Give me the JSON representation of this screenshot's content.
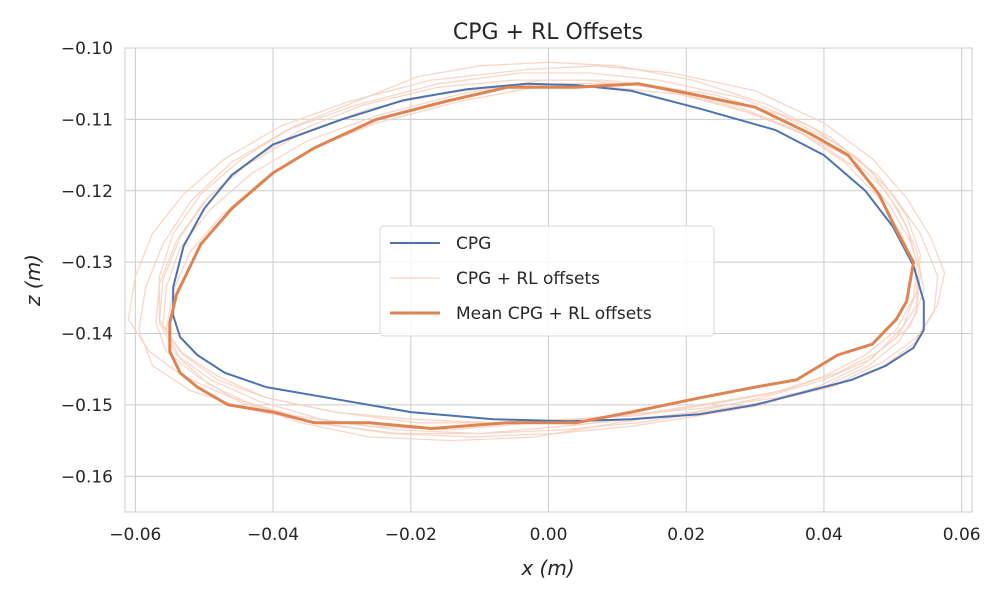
{
  "chart_data": {
    "type": "line",
    "title": "CPG + RL Offsets",
    "xlabel": "x (m)",
    "ylabel": "z (m)",
    "xlim": [
      -0.0615,
      0.0615
    ],
    "ylim": [
      -0.165,
      -0.1
    ],
    "x_ticks": [
      -0.06,
      -0.04,
      -0.02,
      0.0,
      0.02,
      0.04,
      0.06
    ],
    "y_ticks": [
      -0.1,
      -0.11,
      -0.12,
      -0.13,
      -0.14,
      -0.15,
      -0.16
    ],
    "x_tick_labels": [
      "−0.06",
      "−0.04",
      "−0.02",
      "0.00",
      "0.02",
      "0.04",
      "0.06"
    ],
    "y_tick_labels": [
      "−0.10",
      "−0.11",
      "−0.12",
      "−0.13",
      "−0.14",
      "−0.15",
      "−0.16"
    ],
    "grid": true,
    "legend_position": "center",
    "series": [
      {
        "name": "CPG",
        "color": "#4c72b0",
        "x": [
          -0.003,
          0.004,
          0.012,
          0.022,
          0.033,
          0.04,
          0.046,
          0.05,
          0.053,
          0.0545,
          0.0545,
          0.053,
          0.049,
          0.044,
          0.038,
          0.03,
          0.022,
          0.012,
          0.003,
          -0.008,
          -0.02,
          -0.032,
          -0.041,
          -0.047,
          -0.051,
          -0.0535,
          -0.0545,
          -0.0545,
          -0.053,
          -0.05,
          -0.046,
          -0.04,
          -0.03,
          -0.021,
          -0.012,
          -0.003
        ],
        "z": [
          -0.105,
          -0.1052,
          -0.106,
          -0.1085,
          -0.1115,
          -0.115,
          -0.12,
          -0.125,
          -0.1305,
          -0.1355,
          -0.1395,
          -0.142,
          -0.1445,
          -0.1465,
          -0.148,
          -0.15,
          -0.1513,
          -0.152,
          -0.1523,
          -0.152,
          -0.151,
          -0.149,
          -0.1475,
          -0.1455,
          -0.143,
          -0.1405,
          -0.1375,
          -0.1335,
          -0.1278,
          -0.1225,
          -0.1178,
          -0.1135,
          -0.11,
          -0.1073,
          -0.1058,
          -0.105
        ]
      },
      {
        "name": "CPG + RL offsets",
        "color": "#f6d3c2",
        "x": [
          -0.004,
          0.006,
          0.016,
          0.028,
          0.038,
          0.045,
          0.05,
          0.054,
          0.0565,
          0.056,
          0.053,
          0.048,
          0.041,
          0.032,
          0.022,
          0.012,
          0.002,
          -0.01,
          -0.022,
          -0.034,
          -0.044,
          -0.052,
          -0.0575,
          -0.0595,
          -0.0585,
          -0.056,
          -0.052,
          -0.046,
          -0.038,
          -0.028,
          -0.016,
          -0.004
        ],
        "z": [
          -0.1035,
          -0.1035,
          -0.1045,
          -0.107,
          -0.111,
          -0.1155,
          -0.1205,
          -0.126,
          -0.132,
          -0.137,
          -0.1415,
          -0.145,
          -0.1475,
          -0.1495,
          -0.151,
          -0.152,
          -0.153,
          -0.154,
          -0.154,
          -0.1525,
          -0.1505,
          -0.148,
          -0.1445,
          -0.1395,
          -0.1335,
          -0.1275,
          -0.1215,
          -0.116,
          -0.1115,
          -0.108,
          -0.105,
          -0.1035
        ]
      },
      {
        "name": "Mean CPG + RL offsets",
        "color": "#dd8452",
        "x": [
          -0.006,
          0.004,
          0.013,
          0.021,
          0.03,
          0.038,
          0.0435,
          0.048,
          0.0505,
          0.053,
          0.052,
          0.0505,
          0.047,
          0.042,
          0.036,
          0.03,
          0.022,
          0.012,
          0.004,
          -0.006,
          -0.017,
          -0.026,
          -0.034,
          -0.04,
          -0.0465,
          -0.051,
          -0.0535,
          -0.055,
          -0.055,
          -0.054,
          -0.0525,
          -0.0505,
          -0.046,
          -0.04,
          -0.034,
          -0.025,
          -0.015,
          -0.006
        ],
        "z": [
          -0.1055,
          -0.1055,
          -0.105,
          -0.1065,
          -0.1083,
          -0.112,
          -0.115,
          -0.1205,
          -0.1255,
          -0.13,
          -0.1355,
          -0.138,
          -0.1415,
          -0.143,
          -0.1465,
          -0.1475,
          -0.149,
          -0.151,
          -0.1525,
          -0.1525,
          -0.1533,
          -0.1525,
          -0.1525,
          -0.151,
          -0.15,
          -0.1475,
          -0.1455,
          -0.1425,
          -0.1385,
          -0.1345,
          -0.1315,
          -0.1275,
          -0.1225,
          -0.1175,
          -0.114,
          -0.11,
          -0.1075,
          -0.1055
        ]
      }
    ],
    "extra_traces": {
      "color": "#f6d3c2",
      "traces": [
        {
          "x": [
            -0.003,
            0.007,
            0.018,
            0.03,
            0.04,
            0.047,
            0.052,
            0.0555,
            0.0575,
            0.0565,
            0.0535,
            0.0485,
            0.042,
            0.033,
            0.022,
            0.01,
            -0.002,
            -0.014,
            -0.026,
            -0.037,
            -0.046,
            -0.053,
            -0.058,
            -0.061,
            -0.06,
            -0.0575,
            -0.053,
            -0.047,
            -0.039,
            -0.029,
            -0.017,
            -0.003
          ],
          "z": [
            -0.103,
            -0.1025,
            -0.1035,
            -0.106,
            -0.1105,
            -0.1155,
            -0.121,
            -0.1265,
            -0.1315,
            -0.136,
            -0.1405,
            -0.144,
            -0.147,
            -0.149,
            -0.1505,
            -0.1515,
            -0.1525,
            -0.1535,
            -0.153,
            -0.1515,
            -0.149,
            -0.146,
            -0.1425,
            -0.138,
            -0.132,
            -0.126,
            -0.1205,
            -0.1155,
            -0.111,
            -0.1075,
            -0.1045,
            -0.103
          ]
        },
        {
          "x": [
            -0.008,
            0.002,
            0.012,
            0.024,
            0.034,
            0.042,
            0.048,
            0.052,
            0.054,
            0.0535,
            0.0515,
            0.047,
            0.04,
            0.031,
            0.021,
            0.01,
            -0.002,
            -0.014,
            -0.026,
            -0.036,
            -0.045,
            -0.051,
            -0.0555,
            -0.057,
            -0.0565,
            -0.054,
            -0.05,
            -0.044,
            -0.036,
            -0.026,
            -0.016,
            -0.008
          ],
          "z": [
            -0.1055,
            -0.105,
            -0.105,
            -0.1065,
            -0.1095,
            -0.1135,
            -0.118,
            -0.1235,
            -0.129,
            -0.134,
            -0.139,
            -0.1435,
            -0.1465,
            -0.149,
            -0.151,
            -0.1525,
            -0.1545,
            -0.155,
            -0.1545,
            -0.1525,
            -0.1495,
            -0.146,
            -0.1425,
            -0.1385,
            -0.133,
            -0.127,
            -0.1215,
            -0.1165,
            -0.112,
            -0.1085,
            -0.1065,
            -0.1055
          ]
        },
        {
          "x": [
            -0.001,
            0.008,
            0.017,
            0.027,
            0.036,
            0.044,
            0.049,
            0.052,
            0.0535,
            0.053,
            0.0505,
            0.046,
            0.04,
            0.032,
            0.023,
            0.013,
            0.003,
            -0.008,
            -0.02,
            -0.031,
            -0.041,
            -0.048,
            -0.053,
            -0.056,
            -0.0555,
            -0.0535,
            -0.049,
            -0.043,
            -0.035,
            -0.025,
            -0.013,
            -0.001
          ],
          "z": [
            -0.1045,
            -0.1045,
            -0.1055,
            -0.108,
            -0.1115,
            -0.1155,
            -0.12,
            -0.125,
            -0.13,
            -0.135,
            -0.1395,
            -0.143,
            -0.146,
            -0.1485,
            -0.15,
            -0.1515,
            -0.152,
            -0.1525,
            -0.152,
            -0.151,
            -0.149,
            -0.1465,
            -0.143,
            -0.139,
            -0.1335,
            -0.128,
            -0.1225,
            -0.1175,
            -0.113,
            -0.1095,
            -0.1065,
            -0.1045
          ]
        },
        {
          "x": [
            -0.005,
            0.005,
            0.015,
            0.026,
            0.036,
            0.043,
            0.048,
            0.0515,
            0.0535,
            0.0535,
            0.051,
            0.0465,
            0.04,
            0.032,
            0.023,
            0.013,
            0.002,
            -0.01,
            -0.022,
            -0.033,
            -0.042,
            -0.049,
            -0.054,
            -0.0565,
            -0.056,
            -0.0535,
            -0.0495,
            -0.0435,
            -0.036,
            -0.027,
            -0.016,
            -0.005
          ],
          "z": [
            -0.1045,
            -0.1045,
            -0.1055,
            -0.108,
            -0.1115,
            -0.116,
            -0.121,
            -0.1265,
            -0.132,
            -0.137,
            -0.141,
            -0.1445,
            -0.1475,
            -0.1495,
            -0.151,
            -0.1525,
            -0.1535,
            -0.154,
            -0.1535,
            -0.152,
            -0.1495,
            -0.1465,
            -0.143,
            -0.1385,
            -0.1325,
            -0.1265,
            -0.121,
            -0.116,
            -0.1115,
            -0.108,
            -0.1055,
            -0.1045
          ]
        },
        {
          "x": [
            -0.01,
            0.0,
            0.01,
            0.021,
            0.032,
            0.041,
            0.047,
            0.051,
            0.0535,
            0.0545,
            0.0525,
            0.048,
            0.042,
            0.034,
            0.025,
            0.015,
            0.004,
            -0.007,
            -0.019,
            -0.031,
            -0.041,
            -0.048,
            -0.0535,
            -0.0565,
            -0.0565,
            -0.0545,
            -0.0505,
            -0.0445,
            -0.037,
            -0.028,
            -0.019,
            -0.01
          ],
          "z": [
            -0.1025,
            -0.102,
            -0.1025,
            -0.1045,
            -0.108,
            -0.1125,
            -0.1175,
            -0.123,
            -0.1285,
            -0.134,
            -0.139,
            -0.1425,
            -0.1455,
            -0.148,
            -0.1495,
            -0.151,
            -0.152,
            -0.1525,
            -0.1525,
            -0.151,
            -0.149,
            -0.146,
            -0.1425,
            -0.138,
            -0.132,
            -0.126,
            -0.1205,
            -0.1155,
            -0.111,
            -0.1075,
            -0.104,
            -0.1025
          ]
        },
        {
          "x": [
            -0.002,
            0.009,
            0.019,
            0.029,
            0.038,
            0.045,
            0.0495,
            0.0525,
            0.054,
            0.0535,
            0.0505,
            0.0455,
            0.039,
            0.031,
            0.022,
            0.012,
            0.001,
            -0.011,
            -0.023,
            -0.034,
            -0.043,
            -0.0495,
            -0.0535,
            -0.0555,
            -0.0545,
            -0.052,
            -0.0475,
            -0.0415,
            -0.034,
            -0.025,
            -0.013,
            -0.002
          ],
          "z": [
            -0.1055,
            -0.1055,
            -0.1065,
            -0.109,
            -0.1125,
            -0.117,
            -0.122,
            -0.127,
            -0.1315,
            -0.136,
            -0.1405,
            -0.1445,
            -0.1475,
            -0.15,
            -0.1515,
            -0.153,
            -0.154,
            -0.1545,
            -0.154,
            -0.1525,
            -0.15,
            -0.147,
            -0.1435,
            -0.1395,
            -0.134,
            -0.1285,
            -0.1235,
            -0.1185,
            -0.114,
            -0.1105,
            -0.1075,
            -0.1055
          ]
        }
      ]
    }
  }
}
